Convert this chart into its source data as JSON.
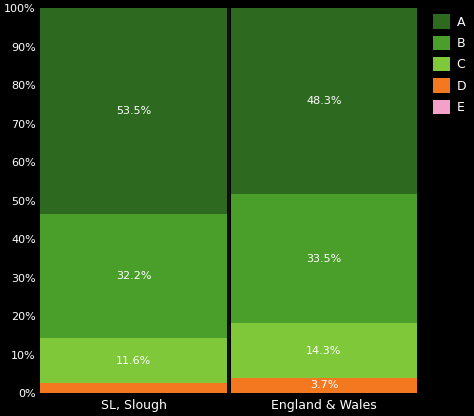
{
  "categories": [
    "SL, Slough",
    "England & Wales"
  ],
  "colors": {
    "A": "#2d6a1f",
    "B": "#4a9e2a",
    "C": "#7ec83a",
    "D": "#f47820",
    "E": "#f4a0c8"
  },
  "values": {
    "SL, Slough": {
      "A": 53.5,
      "B": 32.2,
      "C": 11.6,
      "D": 2.5,
      "E": 0.2
    },
    "England & Wales": {
      "A": 48.3,
      "B": 33.5,
      "C": 14.3,
      "D": 3.7,
      "E": 0.2
    }
  },
  "labels": {
    "SL, Slough": {
      "A": "53.5%",
      "B": "32.2%",
      "C": "11.6%",
      "D": "",
      "E": ""
    },
    "England & Wales": {
      "A": "48.3%",
      "B": "33.5%",
      "C": "14.3%",
      "D": "3.7%",
      "E": ""
    }
  },
  "background_color": "#000000",
  "text_color": "#ffffff",
  "ytick_labels": [
    "0%",
    "10%",
    "20%",
    "30%",
    "40%",
    "50%",
    "60%",
    "70%",
    "80%",
    "90%",
    "100%"
  ],
  "ytick_values": [
    0,
    10,
    20,
    30,
    40,
    50,
    60,
    70,
    80,
    90,
    100
  ],
  "legend_labels": [
    "A",
    "B",
    "C",
    "D",
    "E"
  ],
  "figsize": [
    4.74,
    4.16
  ],
  "dpi": 100
}
